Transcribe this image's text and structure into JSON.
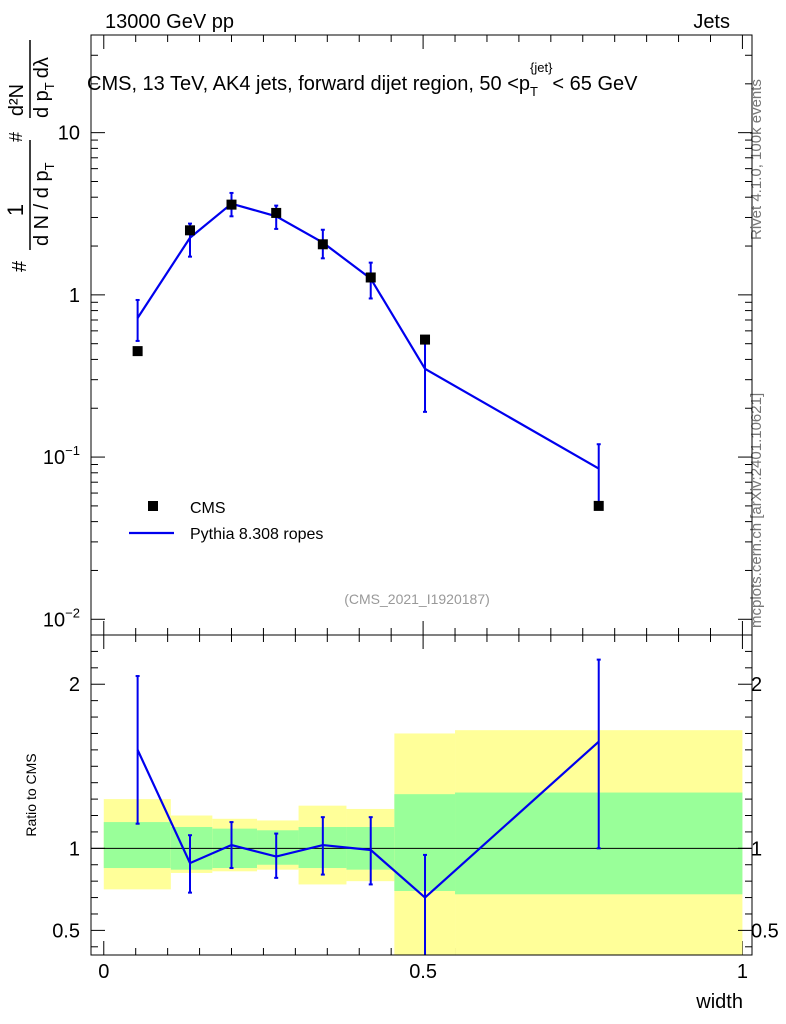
{
  "header": {
    "left": "13000 GeV pp",
    "right": "Jets"
  },
  "side_labels": {
    "top": "Rivet 4.1.0,  100k events",
    "bottom": "mcplots.cern.ch [arXiv:2401.10621]"
  },
  "colors": {
    "mc": "#0000ee",
    "data": "#000000",
    "band_inner": "#99ff99",
    "band_outer": "#ffff99"
  },
  "chart_data": {
    "type": "scatter",
    "title": "CMS, 13 TeV, AK4 jets, forward dijet region, 50 <p_T^{jet}< 65 GeV",
    "title_parts": {
      "pre": "CMS, 13 TeV, AK4 jets, forward dijet region, 50 <p",
      "sub": "T",
      "sup": "{jet}",
      "post": "< 65 GeV"
    },
    "watermark": "(CMS_2021_I1920187)",
    "xlabel": "width",
    "ylabel_parts": {
      "num_left": "1",
      "den_left": "d N / d p",
      "den_left_sub": "T",
      "num_right": "d²N",
      "den_right": "d p",
      "den_right_sub": "T",
      "den_right_tail": "dλ",
      "hash": "#"
    },
    "ratio_ylabel": "Ratio to CMS",
    "xlim": [
      -0.02,
      1.015
    ],
    "ylim_main": [
      0.008,
      40
    ],
    "ylim_ratio": [
      0.35,
      2.3
    ],
    "x_ticks": [
      {
        "v": 0,
        "label": "0"
      },
      {
        "v": 0.5,
        "label": "0.5"
      },
      {
        "v": 1,
        "label": "1"
      }
    ],
    "y_ticks_main": [
      {
        "v": 0.01,
        "base": "10",
        "exp": "−2"
      },
      {
        "v": 0.1,
        "base": "10",
        "exp": "−1"
      },
      {
        "v": 1,
        "base": "1",
        "exp": ""
      },
      {
        "v": 10,
        "base": "10",
        "exp": ""
      }
    ],
    "y_ticks_ratio": [
      {
        "v": 0.5,
        "label": "0.5"
      },
      {
        "v": 1,
        "label": "1"
      },
      {
        "v": 2,
        "label": "2"
      }
    ],
    "legend": {
      "data_label": "CMS",
      "mc_label": "Pythia 8.308 ropes",
      "position": "bottom-left"
    },
    "bins": [
      {
        "lo": 0.0,
        "hi": 0.105,
        "band_inner": [
          0.88,
          1.16
        ],
        "band_outer": [
          0.75,
          1.3
        ]
      },
      {
        "lo": 0.105,
        "hi": 0.17,
        "band_inner": [
          0.87,
          1.13
        ],
        "band_outer": [
          0.85,
          1.2
        ]
      },
      {
        "lo": 0.17,
        "hi": 0.24,
        "band_inner": [
          0.88,
          1.12
        ],
        "band_outer": [
          0.86,
          1.18
        ]
      },
      {
        "lo": 0.24,
        "hi": 0.305,
        "band_inner": [
          0.9,
          1.11
        ],
        "band_outer": [
          0.87,
          1.17
        ]
      },
      {
        "lo": 0.305,
        "hi": 0.38,
        "band_inner": [
          0.88,
          1.13
        ],
        "band_outer": [
          0.78,
          1.26
        ]
      },
      {
        "lo": 0.38,
        "hi": 0.455,
        "band_inner": [
          0.87,
          1.13
        ],
        "band_outer": [
          0.8,
          1.24
        ]
      },
      {
        "lo": 0.455,
        "hi": 0.55,
        "band_inner": [
          0.74,
          1.33
        ],
        "band_outer": [
          0.35,
          1.7
        ]
      },
      {
        "lo": 0.55,
        "hi": 1.0,
        "band_inner": [
          0.72,
          1.34
        ],
        "band_outer": [
          0.35,
          1.72
        ]
      }
    ],
    "series": [
      {
        "name": "CMS",
        "kind": "data",
        "x": [
          0.053,
          0.135,
          0.2,
          0.27,
          0.343,
          0.418,
          0.503,
          0.775
        ],
        "y": [
          0.45,
          2.5,
          3.6,
          3.2,
          2.05,
          1.28,
          0.53,
          0.05
        ]
      },
      {
        "name": "Pythia 8.308 ropes",
        "kind": "mc",
        "x": [
          0.053,
          0.135,
          0.2,
          0.27,
          0.343,
          0.418,
          0.503,
          0.775
        ],
        "y": [
          0.72,
          2.25,
          3.65,
          3.05,
          2.1,
          1.26,
          0.35,
          0.085
        ],
        "err_lo": [
          0.52,
          1.72,
          3.05,
          2.55,
          1.68,
          0.95,
          0.19,
          0.05
        ],
        "err_hi": [
          0.93,
          2.75,
          4.25,
          3.55,
          2.52,
          1.58,
          0.52,
          0.12
        ],
        "ratio": [
          1.6,
          0.91,
          1.02,
          0.95,
          1.02,
          0.99,
          0.7,
          1.65
        ],
        "ratio_lo": [
          1.15,
          0.73,
          0.88,
          0.82,
          0.84,
          0.78,
          0.34,
          1.0
        ],
        "ratio_hi": [
          2.05,
          1.08,
          1.16,
          1.09,
          1.19,
          1.19,
          0.96,
          2.15
        ]
      }
    ]
  }
}
